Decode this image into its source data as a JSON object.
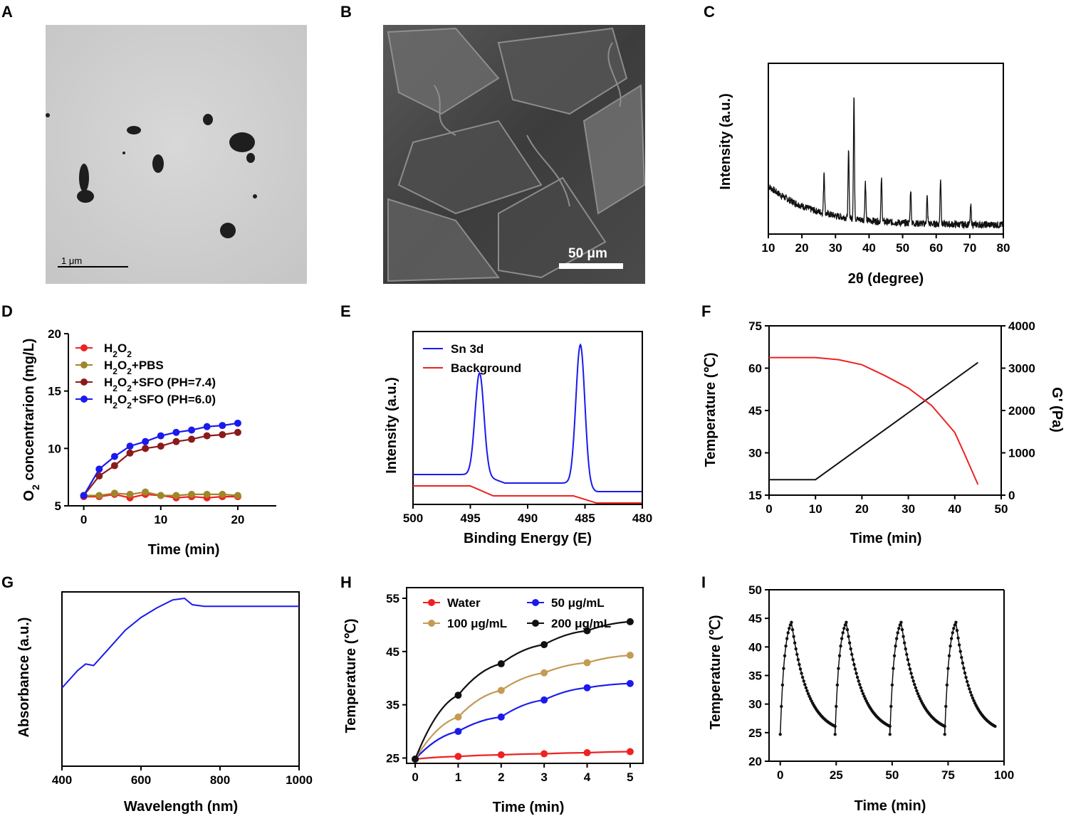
{
  "panel_labels": {
    "a": "A",
    "b": "B",
    "c": "C",
    "d": "D",
    "e": "E",
    "f": "F",
    "g": "G",
    "h": "H",
    "i": "I"
  },
  "images": {
    "tem_scale_bar": "1 μm",
    "sem_scale_bar": "50 μm"
  },
  "colors": {
    "red": "#ee2222",
    "blue": "#1a1aee",
    "olive": "#a0862a",
    "darkred": "#8b1a1a",
    "black": "#111111",
    "tan": "#c39b55"
  },
  "chart_data": [
    {
      "id": "C",
      "type": "line",
      "title": "",
      "xlabel": "2θ (degree)",
      "ylabel": "Intensity (a.u.)",
      "xlim": [
        10,
        80
      ],
      "xticks": [
        10,
        20,
        30,
        40,
        50,
        60,
        70,
        80
      ],
      "peaks": [
        {
          "x": 26.6,
          "height": 0.35
        },
        {
          "x": 33.9,
          "height": 0.55
        },
        {
          "x": 35.5,
          "height": 1.0
        },
        {
          "x": 38.9,
          "height": 0.32
        },
        {
          "x": 43.7,
          "height": 0.35
        },
        {
          "x": 52.4,
          "height": 0.28
        },
        {
          "x": 57.3,
          "height": 0.22
        },
        {
          "x": 61.3,
          "height": 0.38
        },
        {
          "x": 70.3,
          "height": 0.15
        }
      ]
    },
    {
      "id": "D",
      "type": "line",
      "xlabel": "Time (min)",
      "ylabel": "O2 concentrarion (mg/L)",
      "ylabel_main": "O",
      "ylabel_sub": "2",
      "ylabel_rest": " concentrarion (mg/L)",
      "xlim": [
        -2,
        25
      ],
      "ylim": [
        5,
        20
      ],
      "xticks": [
        0,
        10,
        20
      ],
      "yticks": [
        5,
        10,
        15,
        20
      ],
      "x": [
        0,
        2,
        4,
        6,
        8,
        10,
        12,
        14,
        16,
        18,
        20
      ],
      "series": [
        {
          "name": "H2O2",
          "label_parts": [
            "H",
            "2",
            "O",
            "2",
            ""
          ],
          "color": "#ee2222",
          "values": [
            5.8,
            5.8,
            6.0,
            5.7,
            6.0,
            5.9,
            5.7,
            5.8,
            5.7,
            5.8,
            5.8
          ]
        },
        {
          "name": "H2O2+PBS",
          "label_parts": [
            "H",
            "2",
            "O",
            "2",
            "+PBS"
          ],
          "color": "#a0862a",
          "values": [
            5.9,
            5.9,
            6.1,
            6.0,
            6.2,
            5.9,
            5.9,
            6.0,
            6.0,
            6.0,
            5.9
          ]
        },
        {
          "name": "H2O2+SFO (PH=7.4)",
          "label_parts": [
            "H",
            "2",
            "O",
            "2",
            "+SFO (PH=7.4)"
          ],
          "color": "#8b1a1a",
          "values": [
            5.9,
            7.6,
            8.5,
            9.6,
            10.0,
            10.2,
            10.6,
            10.8,
            11.1,
            11.2,
            11.4
          ]
        },
        {
          "name": "H2O2+SFO (PH=6.0)",
          "label_parts": [
            "H",
            "2",
            "O",
            "2",
            "+SFO (PH=6.0)"
          ],
          "color": "#1a1aee",
          "values": [
            5.9,
            8.2,
            9.3,
            10.2,
            10.6,
            11.1,
            11.4,
            11.6,
            11.9,
            12.0,
            12.2
          ]
        }
      ]
    },
    {
      "id": "E",
      "type": "line",
      "xlabel": "Binding Energy (E)",
      "ylabel": "Intensity (a.u.)",
      "xlim": [
        500,
        480
      ],
      "xticks": [
        500,
        495,
        490,
        485,
        480
      ],
      "series": [
        {
          "name": "Sn 3d",
          "color": "#1a1aee",
          "peaks": [
            {
              "x": 494.2,
              "height": 0.67
            },
            {
              "x": 485.4,
              "height": 0.93
            }
          ]
        },
        {
          "name": "Background",
          "color": "#ee2222"
        }
      ]
    },
    {
      "id": "F",
      "type": "line",
      "xlabel": "Time (min)",
      "ylabel": "Temperature (℃)",
      "ylabel2": "G' (Pa)",
      "xlim": [
        0,
        50
      ],
      "ylim": [
        15,
        75
      ],
      "ylim2": [
        0,
        4000
      ],
      "xticks": [
        0,
        10,
        20,
        30,
        40,
        50
      ],
      "yticks": [
        15,
        30,
        45,
        60,
        75
      ],
      "yticks2": [
        0,
        1000,
        2000,
        3000,
        4000
      ],
      "series": [
        {
          "name": "Temperature",
          "color": "#111111",
          "axis": "left",
          "x": [
            0,
            10,
            45
          ],
          "values": [
            20.5,
            20.5,
            62
          ]
        },
        {
          "name": "G'",
          "color": "#ee2222",
          "axis": "right",
          "x": [
            0,
            5,
            10,
            15,
            20,
            25,
            30,
            35,
            40,
            42,
            45
          ],
          "values": [
            3250,
            3250,
            3250,
            3200,
            3080,
            2820,
            2530,
            2120,
            1480,
            1000,
            250
          ]
        }
      ]
    },
    {
      "id": "G",
      "type": "line",
      "xlabel": "Wavelength (nm)",
      "ylabel": "Absorbance (a.u.)",
      "xlim": [
        400,
        1000
      ],
      "xticks": [
        400,
        600,
        800,
        1000
      ],
      "series": [
        {
          "name": "Absorbance",
          "color": "#1a1aee",
          "x": [
            400,
            440,
            460,
            480,
            520,
            560,
            600,
            640,
            680,
            710,
            730,
            760,
            800,
            900,
            1000
          ],
          "values": [
            0.0,
            0.11,
            0.15,
            0.14,
            0.25,
            0.36,
            0.44,
            0.5,
            0.55,
            0.56,
            0.52,
            0.51,
            0.51,
            0.51,
            0.51
          ]
        }
      ]
    },
    {
      "id": "H",
      "type": "line",
      "xlabel": "Time (min)",
      "ylabel": "Temperature (℃)",
      "xlim": [
        -0.2,
        5.3
      ],
      "ylim": [
        24,
        57
      ],
      "xticks": [
        0,
        1,
        2,
        3,
        4,
        5
      ],
      "yticks": [
        25,
        35,
        45,
        55
      ],
      "x": [
        0,
        1,
        2,
        3,
        4,
        5
      ],
      "series": [
        {
          "name": "Water",
          "color": "#ee2222",
          "values": [
            24.8,
            25.3,
            25.6,
            25.8,
            26.0,
            26.2
          ]
        },
        {
          "name": "50 μg/mL",
          "color": "#1a1aee",
          "values": [
            24.8,
            30.0,
            32.7,
            35.9,
            38.2,
            39.0
          ]
        },
        {
          "name": "100 μg/mL",
          "color": "#c39b55",
          "values": [
            24.8,
            32.7,
            37.7,
            41.0,
            42.9,
            44.3
          ]
        },
        {
          "name": "200 μg/mL",
          "color": "#111111",
          "values": [
            24.8,
            36.8,
            42.7,
            46.3,
            48.9,
            50.6
          ]
        }
      ]
    },
    {
      "id": "I",
      "type": "line",
      "xlabel": "Time (min)",
      "ylabel": "Temperature (℃)",
      "xlim": [
        -5,
        100
      ],
      "ylim": [
        20,
        50
      ],
      "xticks": [
        0,
        25,
        50,
        75,
        100
      ],
      "yticks": [
        20,
        25,
        30,
        35,
        40,
        45,
        50
      ],
      "cycles": [
        {
          "start": 0,
          "peak_time": 5,
          "end": 24.5
        },
        {
          "start": 24.5,
          "peak_time": 29.5,
          "end": 49
        },
        {
          "start": 49,
          "peak_time": 54,
          "end": 73.5
        },
        {
          "start": 73.5,
          "peak_time": 78.5,
          "end": 96
        }
      ],
      "baseline": 24.7,
      "peak": 44.3
    }
  ]
}
